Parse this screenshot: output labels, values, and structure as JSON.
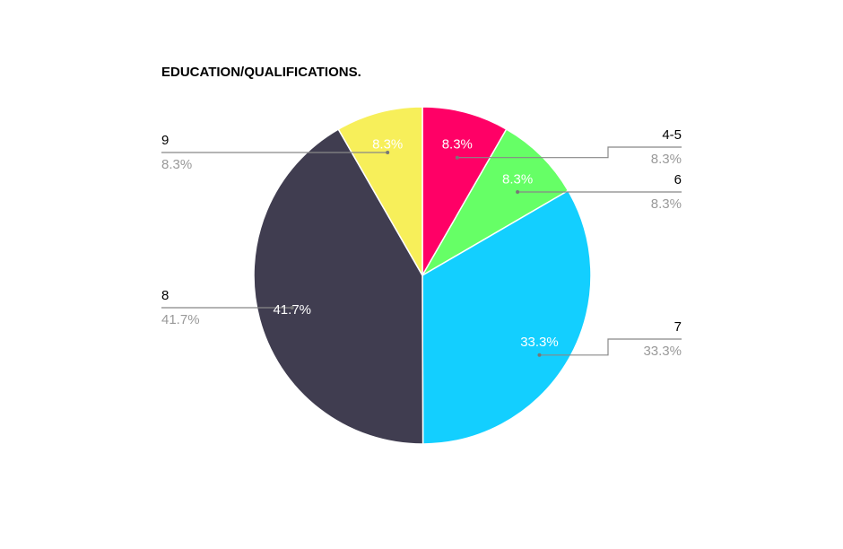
{
  "chart_data": {
    "type": "pie",
    "title": "EDUCATION/QUALIFICATIONS.",
    "categories": [
      "4-5",
      "6",
      "7",
      "8",
      "9"
    ],
    "values": [
      8.3,
      8.3,
      33.3,
      41.7,
      8.3
    ],
    "value_labels": [
      "8.3%",
      "8.3%",
      "33.3%",
      "41.7%",
      "8.3%"
    ],
    "colors": [
      "#ff0066",
      "#66ff66",
      "#13cfff",
      "#403d50",
      "#f7ef5a"
    ]
  }
}
